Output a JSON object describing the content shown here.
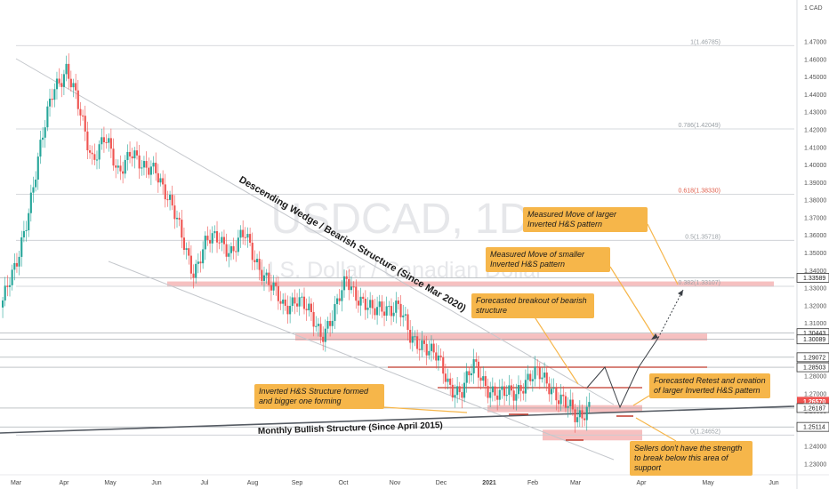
{
  "chart_data": {
    "type": "candlestick",
    "symbol": "USDCAD, 1D",
    "watermark_main": "USDCAD, 1D",
    "watermark_sub": "U.S. Dollar / Canadian Dollar",
    "currency_label": "CAD",
    "y_axis": {
      "range": [
        1.225,
        1.483
      ],
      "ticks": [
        "1.47000",
        "1.46000",
        "1.45000",
        "1.44000",
        "1.43000",
        "1.42000",
        "1.41000",
        "1.40000",
        "1.39000",
        "1.38000",
        "1.37000",
        "1.36000",
        "1.35000",
        "1.34000",
        "1.33000",
        "1.32000",
        "1.31000",
        "1.30000",
        "1.29000",
        "1.28000",
        "1.27000",
        "1.26000",
        "1.25000",
        "1.24000",
        "1.23000"
      ],
      "highlighted_labels": [
        {
          "value": 1.33589,
          "label": "1.33589",
          "style": "outline"
        },
        {
          "value": 1.30443,
          "label": "1.30443",
          "style": "outline"
        },
        {
          "value": 1.30089,
          "label": "1.30089",
          "style": "outline"
        },
        {
          "value": 1.29072,
          "label": "1.29072",
          "style": "outline"
        },
        {
          "value": 1.28503,
          "label": "1.28503",
          "style": "outline"
        },
        {
          "value": 1.2657,
          "label": "1.26570",
          "style": "current"
        },
        {
          "value": 1.26187,
          "label": "1.26187",
          "style": "outline"
        },
        {
          "value": 1.25114,
          "label": "1.25114",
          "style": "outline"
        }
      ]
    },
    "x_axis": {
      "labels": [
        "Mar",
        "Apr",
        "May",
        "Jun",
        "Jul",
        "Aug",
        "Sep",
        "Oct",
        "Nov",
        "Dec",
        "2021",
        "Feb",
        "Mar",
        "Apr",
        "May",
        "Jun"
      ]
    },
    "fibonacci": [
      {
        "value": 1.46785,
        "label": "1(1.46785)",
        "color": "#9aa0a6"
      },
      {
        "value": 1.42049,
        "label": "0.786(1.42049)",
        "color": "#9aa0a6"
      },
      {
        "value": 1.3833,
        "label": "0.618(1.38330)",
        "color": "#e0604d"
      },
      {
        "value": 1.35718,
        "label": "0.5(1.35718)",
        "color": "#9aa0a6"
      },
      {
        "value": 1.33107,
        "label": "0.382(1.33107)",
        "color": "#9aa0a6"
      },
      {
        "value": 1.24652,
        "label": "0(1.24652)",
        "color": "#9aa0a6"
      }
    ],
    "close_path": [
      [
        "Mar",
        1.323
      ],
      [
        "Mar",
        1.34
      ],
      [
        "Mar",
        1.375
      ],
      [
        "Mar",
        1.41
      ],
      [
        "Mar",
        1.445
      ],
      [
        "Mar",
        1.455
      ],
      [
        "Apr",
        1.43
      ],
      [
        "Apr",
        1.405
      ],
      [
        "Apr",
        1.415
      ],
      [
        "Apr",
        1.395
      ],
      [
        "May",
        1.41
      ],
      [
        "May",
        1.395
      ],
      [
        "May",
        1.4
      ],
      [
        "May",
        1.38
      ],
      [
        "May",
        1.36
      ],
      [
        "Jun",
        1.34
      ],
      [
        "Jun",
        1.355
      ],
      [
        "Jun",
        1.36
      ],
      [
        "Jul",
        1.35
      ],
      [
        "Jul",
        1.36
      ],
      [
        "Jul",
        1.345
      ],
      [
        "Aug",
        1.33
      ],
      [
        "Aug",
        1.32
      ],
      [
        "Aug",
        1.325
      ],
      [
        "Aug",
        1.315
      ],
      [
        "Sep",
        1.305
      ],
      [
        "Sep",
        1.315
      ],
      [
        "Sep",
        1.335
      ],
      [
        "Oct",
        1.325
      ],
      [
        "Oct",
        1.315
      ],
      [
        "Oct",
        1.32
      ],
      [
        "Nov",
        1.32
      ],
      [
        "Nov",
        1.3
      ],
      [
        "Nov",
        1.3
      ],
      [
        "Nov",
        1.29
      ],
      [
        "Dec",
        1.275
      ],
      [
        "Dec",
        1.272
      ],
      [
        "Dec",
        1.285
      ],
      [
        "2021",
        1.275
      ],
      [
        "2021",
        1.268
      ],
      [
        "2021",
        1.27
      ],
      [
        "2021",
        1.278
      ],
      [
        "Feb",
        1.28
      ],
      [
        "Feb",
        1.275
      ],
      [
        "Feb",
        1.265
      ],
      [
        "Mar",
        1.255
      ],
      [
        "Mar",
        1.265
      ]
    ],
    "zones": [
      {
        "from": "Jun",
        "to": "Jun+",
        "low": 1.3308,
        "high": 1.3338,
        "color": "#f4b0b0"
      },
      {
        "from": "Sep",
        "to": "Apr+",
        "low": 1.3002,
        "high": 1.3042,
        "color": "#f4b0b0"
      },
      {
        "from": "Feb",
        "to": "Mar+",
        "low": 1.2595,
        "high": 1.2635,
        "color": "#f4b0b0"
      },
      {
        "from": "Feb",
        "to": "Mar+",
        "low": 1.2435,
        "high": 1.2495,
        "color": "#f4b0b0"
      }
    ],
    "annotations": {
      "wedge_label": "Descending Wedge / Bearish Structure (Since Mar 2020)",
      "monthly_label": "Monthly Bullish Structure (Since April 2015)"
    },
    "grid": false,
    "legend": "none"
  },
  "callouts": [
    {
      "id": "larger",
      "text": "Measured Move of larger Inverted H&S pattern"
    },
    {
      "id": "smaller",
      "text": "Measured Move of smaller Inverted H&S pattern"
    },
    {
      "id": "breakout",
      "text": "Forecasted breakout of bearish structure"
    },
    {
      "id": "retest",
      "text": "Forecasted Retest and creation of larger Inverted H&S pattern"
    },
    {
      "id": "invhs",
      "text": "Inverted H&S Structure formed and bigger one forming"
    },
    {
      "id": "sellers",
      "text": "Sellers don't have the strength to break below this area of support"
    }
  ],
  "colors": {
    "up": "#26a69a",
    "down": "#ef5350",
    "zone": "#f4b0b0",
    "callout": "#f6b64a",
    "current_price_bg": "#ef5350"
  }
}
